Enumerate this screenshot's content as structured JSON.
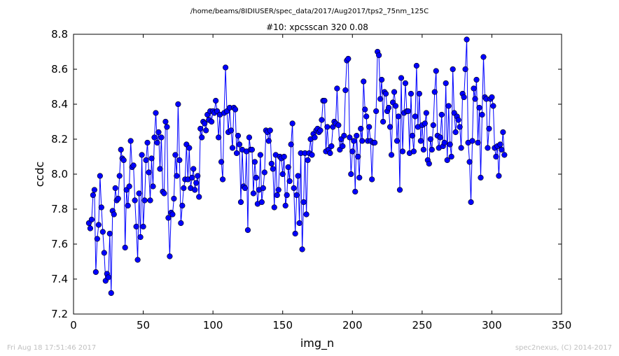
{
  "chart_data": {
    "type": "line",
    "suptitle": "/home/beams/8IDIUSER/spec_data/2017/Aug2017/tps2_75nm_125C",
    "title": "#10: xpcsscan 320 0.08",
    "xlabel": "img_n",
    "ylabel": "ccdc",
    "xlim": [
      0,
      350
    ],
    "ylim": [
      7.2,
      8.8
    ],
    "xticks": [
      0,
      50,
      100,
      150,
      200,
      250,
      300,
      350
    ],
    "yticks": [
      7.2,
      7.4,
      7.6,
      7.8,
      8.0,
      8.2,
      8.4,
      8.6,
      8.8
    ],
    "grid": false,
    "line_color": "#0000ff",
    "marker": "circle",
    "x_start": 11,
    "x_step": 1,
    "series": [
      {
        "values": [
          7.72,
          7.69,
          7.74,
          7.88,
          7.91,
          7.44,
          7.63,
          7.71,
          7.99,
          7.81,
          7.67,
          7.55,
          7.39,
          7.43,
          7.41,
          7.66,
          7.32,
          7.79,
          7.77,
          7.92,
          7.85,
          7.86,
          7.99,
          8.14,
          8.09,
          8.08,
          7.58,
          7.91,
          7.82,
          7.93,
          8.19,
          8.04,
          8.05,
          7.85,
          7.7,
          7.51,
          7.89,
          7.64,
          8.11,
          7.7,
          7.85,
          8.08,
          8.18,
          8.01,
          7.85,
          8.09,
          7.93,
          8.21,
          8.35,
          8.18,
          8.24,
          8.03,
          8.21,
          7.9,
          7.89,
          8.3,
          8.27,
          7.75,
          7.53,
          7.78,
          7.77,
          7.86,
          8.11,
          7.99,
          8.4,
          8.08,
          7.72,
          7.82,
          7.92,
          7.97,
          8.17,
          7.97,
          8.15,
          7.92,
          7.98,
          8.03,
          7.91,
          7.95,
          7.99,
          7.87,
          8.26,
          8.21,
          8.3,
          8.29,
          8.25,
          8.34,
          8.31,
          8.36,
          8.3,
          8.36,
          8.35,
          8.42,
          8.36,
          8.21,
          8.34,
          8.07,
          7.97,
          8.35,
          8.61,
          8.36,
          8.24,
          8.38,
          8.25,
          8.15,
          8.38,
          8.37,
          8.12,
          8.22,
          8.17,
          7.84,
          8.14,
          7.93,
          7.92,
          8.13,
          7.68,
          8.21,
          8.14,
          8.14,
          7.89,
          8.07,
          7.98,
          7.83,
          7.91,
          8.11,
          7.84,
          7.92,
          8.01,
          8.25,
          8.24,
          8.19,
          8.25,
          8.06,
          8.03,
          7.81,
          8.11,
          7.88,
          7.91,
          8.1,
          8.09,
          8.0,
          8.1,
          7.82,
          7.88,
          8.04,
          7.96,
          8.17,
          8.29,
          7.92,
          7.66,
          7.88,
          7.99,
          7.72,
          8.12,
          7.57,
          7.84,
          8.12,
          7.77,
          8.08,
          8.12,
          8.2,
          8.11,
          8.23,
          8.21,
          8.25,
          8.26,
          8.24,
          8.25,
          8.31,
          8.42,
          8.42,
          8.13,
          8.27,
          8.14,
          8.12,
          8.16,
          8.27,
          8.3,
          8.29,
          8.49,
          8.28,
          8.14,
          8.2,
          8.16,
          8.22,
          8.48,
          8.65,
          8.66,
          8.21,
          8.0,
          8.13,
          8.19,
          7.9,
          8.22,
          8.1,
          7.98,
          8.26,
          8.19,
          8.53,
          8.37,
          8.33,
          8.19,
          8.27,
          8.19,
          7.97,
          8.18,
          8.18,
          8.36,
          8.7,
          8.68,
          8.43,
          8.54,
          8.3,
          8.47,
          8.46,
          8.36,
          8.38,
          8.27,
          8.11,
          8.41,
          8.47,
          8.39,
          8.19,
          8.33,
          7.91,
          8.55,
          8.13,
          8.35,
          8.52,
          8.36,
          8.36,
          8.12,
          8.46,
          8.22,
          8.13,
          8.33,
          8.62,
          8.27,
          8.46,
          8.19,
          8.28,
          8.14,
          8.29,
          8.35,
          8.08,
          8.06,
          8.2,
          8.14,
          8.28,
          8.47,
          8.59,
          8.22,
          8.15,
          8.21,
          8.34,
          8.16,
          8.18,
          8.52,
          8.08,
          8.39,
          8.17,
          8.1,
          8.6,
          8.35,
          8.24,
          8.33,
          8.31,
          8.27,
          8.15,
          8.46,
          8.44,
          8.6,
          8.77,
          8.18,
          8.07,
          7.84,
          8.19,
          8.49,
          8.43,
          8.54,
          8.18,
          8.38,
          7.98,
          8.34,
          8.67,
          8.44,
          8.43,
          8.15,
          8.26,
          8.43,
          8.44,
          8.39,
          8.15,
          8.1,
          8.16,
          7.99,
          8.17,
          8.14,
          8.24,
          8.11
        ]
      }
    ]
  },
  "footer": {
    "left": "Fri Aug 18 17:51:46 2017",
    "right": "spec2nexus, (C) 2014-2017"
  }
}
